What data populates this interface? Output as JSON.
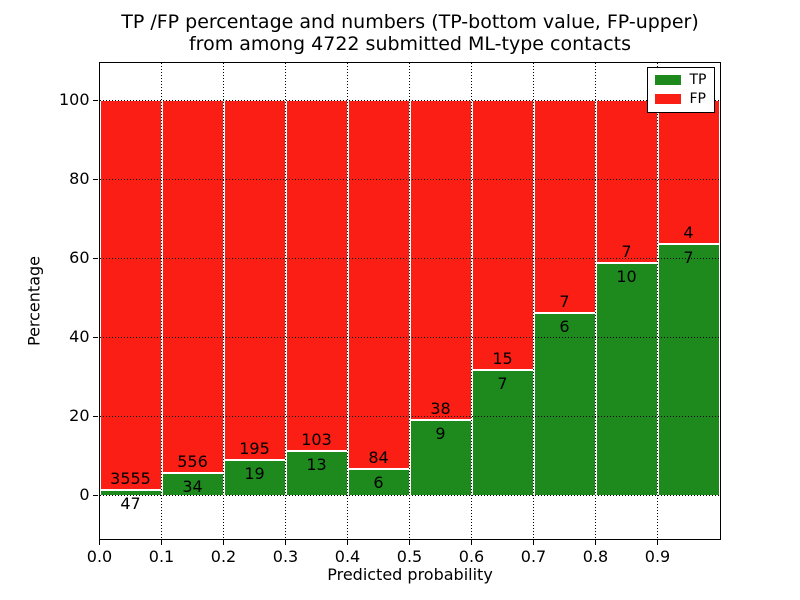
{
  "chart_data": {
    "type": "bar",
    "stacked": true,
    "normalized_to_percent": true,
    "title": "TP /FP percentage and numbers (TP-bottom value, FP-upper)\nfrom among 4722 submitted ML-type contacts",
    "title_lines": [
      "TP /FP percentage and numbers (TP-bottom value, FP-upper)",
      "from among 4722 submitted ML-type contacts"
    ],
    "xlabel": "Predicted probability",
    "ylabel": "Percentage",
    "xlim": [
      0.0,
      1.0
    ],
    "ylim": [
      -10.9,
      109.6
    ],
    "x_tick_labels": [
      "0.0",
      "0.1",
      "0.2",
      "0.3",
      "0.4",
      "0.5",
      "0.6",
      "0.7",
      "0.8",
      "0.9"
    ],
    "y_ticks": [
      0,
      20,
      40,
      60,
      80,
      100
    ],
    "bin_starts": [
      0.0,
      0.1,
      0.2,
      0.3,
      0.4,
      0.5,
      0.6,
      0.7,
      0.8,
      0.9
    ],
    "bin_width": 0.1,
    "total_submitted": 4722,
    "grid": "dotted",
    "bar_edge_color": "#ffffff",
    "series": [
      {
        "name": "TP",
        "color": "#1e8a1e",
        "counts": [
          47,
          34,
          19,
          13,
          6,
          9,
          7,
          6,
          10,
          7
        ]
      },
      {
        "name": "FP",
        "color": "#fb1e15",
        "counts": [
          3555,
          556,
          195,
          103,
          84,
          38,
          15,
          7,
          7,
          4
        ]
      }
    ],
    "legend": {
      "location": "upper right"
    }
  }
}
